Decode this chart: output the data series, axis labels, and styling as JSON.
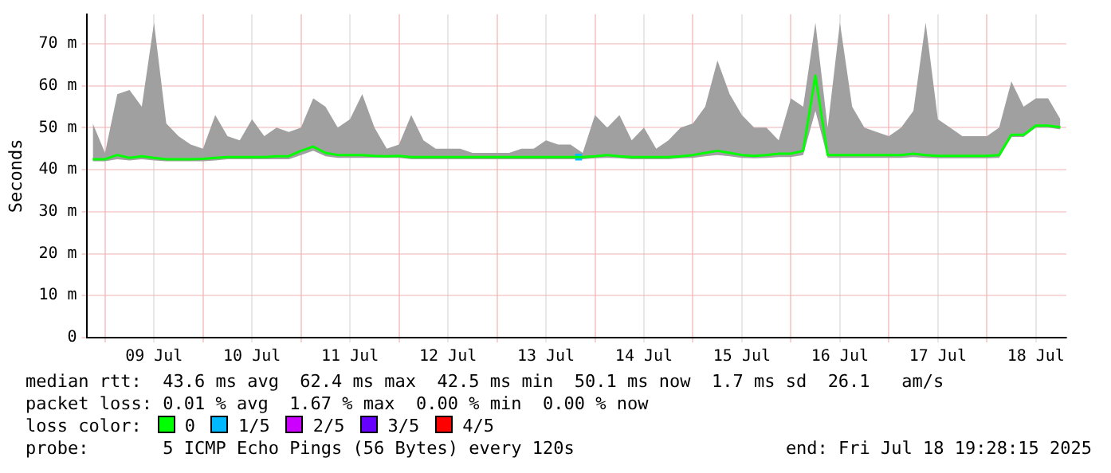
{
  "chart_data": {
    "type": "line",
    "ylabel": "Seconds",
    "legend_title": "loss color:",
    "legend": "bottom",
    "grid": true,
    "xlim": [
      "2025-07-08T19:28",
      "2025-07-18T19:28"
    ],
    "xticks": [
      {
        "value": "2025-07-09T00:00",
        "label": null
      },
      {
        "value": "2025-07-09T12:00",
        "label": "09 Jul"
      },
      {
        "value": "2025-07-10T00:00",
        "label": null
      },
      {
        "value": "2025-07-10T12:00",
        "label": "10 Jul"
      },
      {
        "value": "2025-07-11T00:00",
        "label": null
      },
      {
        "value": "2025-07-11T12:00",
        "label": "11 Jul"
      },
      {
        "value": "2025-07-12T00:00",
        "label": null
      },
      {
        "value": "2025-07-12T12:00",
        "label": "12 Jul"
      },
      {
        "value": "2025-07-13T00:00",
        "label": null
      },
      {
        "value": "2025-07-13T12:00",
        "label": "13 Jul"
      },
      {
        "value": "2025-07-14T00:00",
        "label": null
      },
      {
        "value": "2025-07-14T12:00",
        "label": "14 Jul"
      },
      {
        "value": "2025-07-15T00:00",
        "label": null
      },
      {
        "value": "2025-07-15T12:00",
        "label": "15 Jul"
      },
      {
        "value": "2025-07-16T00:00",
        "label": null
      },
      {
        "value": "2025-07-16T12:00",
        "label": "16 Jul"
      },
      {
        "value": "2025-07-17T00:00",
        "label": null
      },
      {
        "value": "2025-07-17T12:00",
        "label": "17 Jul"
      },
      {
        "value": "2025-07-18T00:00",
        "label": null
      },
      {
        "value": "2025-07-18T12:00",
        "label": "18 Jul"
      }
    ],
    "ylim": [
      0,
      77
    ],
    "yticks": [
      0,
      {
        "value": 10,
        "label": "10 m"
      },
      {
        "value": 20,
        "label": "20 m"
      },
      {
        "value": 30,
        "label": "30 m"
      },
      {
        "value": 40,
        "label": "40 m"
      },
      {
        "value": 50,
        "label": "50 m"
      },
      {
        "value": 60,
        "label": "60 m"
      },
      {
        "value": 70,
        "label": "70 m"
      }
    ],
    "x": [
      "2025-07-08T21:00",
      "2025-07-09T00:00",
      "2025-07-09T03:00",
      "2025-07-09T06:00",
      "2025-07-09T09:00",
      "2025-07-09T12:00",
      "2025-07-09T15:00",
      "2025-07-09T18:00",
      "2025-07-09T21:00",
      "2025-07-10T00:00",
      "2025-07-10T03:00",
      "2025-07-10T06:00",
      "2025-07-10T09:00",
      "2025-07-10T12:00",
      "2025-07-10T15:00",
      "2025-07-10T18:00",
      "2025-07-10T21:00",
      "2025-07-11T00:00",
      "2025-07-11T03:00",
      "2025-07-11T06:00",
      "2025-07-11T09:00",
      "2025-07-11T12:00",
      "2025-07-11T15:00",
      "2025-07-11T18:00",
      "2025-07-11T21:00",
      "2025-07-12T00:00",
      "2025-07-12T03:00",
      "2025-07-12T06:00",
      "2025-07-12T09:00",
      "2025-07-12T12:00",
      "2025-07-12T15:00",
      "2025-07-12T18:00",
      "2025-07-12T21:00",
      "2025-07-13T00:00",
      "2025-07-13T03:00",
      "2025-07-13T06:00",
      "2025-07-13T09:00",
      "2025-07-13T12:00",
      "2025-07-13T15:00",
      "2025-07-13T18:00",
      "2025-07-13T21:00",
      "2025-07-14T00:00",
      "2025-07-14T03:00",
      "2025-07-14T06:00",
      "2025-07-14T09:00",
      "2025-07-14T12:00",
      "2025-07-14T15:00",
      "2025-07-14T18:00",
      "2025-07-14T21:00",
      "2025-07-15T00:00",
      "2025-07-15T03:00",
      "2025-07-15T06:00",
      "2025-07-15T09:00",
      "2025-07-15T12:00",
      "2025-07-15T15:00",
      "2025-07-15T18:00",
      "2025-07-15T21:00",
      "2025-07-16T00:00",
      "2025-07-16T03:00",
      "2025-07-16T06:00",
      "2025-07-16T09:00",
      "2025-07-16T12:00",
      "2025-07-16T15:00",
      "2025-07-16T18:00",
      "2025-07-16T21:00",
      "2025-07-17T00:00",
      "2025-07-17T03:00",
      "2025-07-17T06:00",
      "2025-07-17T09:00",
      "2025-07-17T12:00",
      "2025-07-17T15:00",
      "2025-07-17T18:00",
      "2025-07-17T21:00",
      "2025-07-18T00:00",
      "2025-07-18T03:00",
      "2025-07-18T06:00",
      "2025-07-18T09:00",
      "2025-07-18T12:00",
      "2025-07-18T15:00",
      "2025-07-18T18:00"
    ],
    "series": [
      {
        "name": "0",
        "color": "#00ff00",
        "values": [
          42.5,
          42.5,
          43.5,
          42.8,
          43.2,
          42.8,
          42.5,
          42.5,
          42.5,
          42.6,
          42.8,
          43,
          43,
          43,
          43,
          43.2,
          43.2,
          44.5,
          45.5,
          44,
          43.5,
          43.5,
          43.5,
          43.3,
          43.2,
          43.3,
          43,
          43,
          43,
          43,
          43,
          43,
          43,
          43,
          43,
          43,
          43,
          43,
          43,
          43,
          43,
          43.2,
          43.5,
          43.2,
          43,
          43,
          43,
          43,
          43.2,
          43.5,
          44,
          44.5,
          44,
          43.5,
          43.3,
          43.5,
          43.8,
          43.8,
          44.5,
          62.4,
          43.5,
          43.5,
          43.5,
          43.5,
          43.5,
          43.5,
          43.5,
          43.8,
          43.5,
          43.3,
          43.3,
          43.3,
          43.3,
          43.3,
          43.5,
          48.3,
          48.3,
          50.5,
          50.5,
          50.1
        ],
        "lower": [
          42,
          42,
          42.5,
          42.2,
          42.5,
          42.2,
          42,
          42,
          42,
          42,
          42.2,
          42.5,
          42.5,
          42.5,
          42.5,
          42.5,
          42.5,
          43.5,
          44.5,
          43.2,
          42.8,
          42.8,
          42.8,
          42.8,
          42.8,
          42.8,
          42.5,
          42.5,
          42.5,
          42.5,
          42.5,
          42.5,
          42.5,
          42.5,
          42.5,
          42.5,
          42.5,
          42.5,
          42.5,
          42.5,
          42.5,
          42.7,
          42.8,
          42.7,
          42.5,
          42.5,
          42.5,
          42.5,
          42.7,
          42.8,
          43.2,
          43.5,
          43.2,
          42.8,
          42.7,
          42.8,
          43,
          43,
          43.5,
          54,
          42.8,
          42.8,
          42.8,
          42.8,
          42.8,
          42.8,
          42.8,
          43,
          42.8,
          42.7,
          42.7,
          42.7,
          42.7,
          42.7,
          42.8,
          47.8,
          47.8,
          50,
          50,
          49.6
        ],
        "upper": [
          51,
          44,
          58,
          59,
          55,
          75,
          51,
          48,
          46,
          45,
          53,
          48,
          47,
          52,
          48,
          50,
          49,
          50,
          57,
          55,
          50,
          52,
          58,
          50,
          45,
          46,
          53,
          47,
          45,
          45,
          45,
          44,
          44,
          44,
          44,
          45,
          45,
          47,
          46,
          46,
          44,
          53,
          50,
          53,
          47,
          50,
          45,
          47,
          50,
          51,
          55,
          66,
          58,
          53,
          50,
          50,
          47,
          57,
          55,
          75,
          50,
          75,
          55,
          50,
          49,
          48,
          50,
          54,
          75,
          52,
          50,
          48,
          48,
          48,
          50,
          61,
          55,
          57,
          57,
          52
        ]
      },
      {
        "name": "1/5",
        "color": "#00b8ff",
        "marker": "square",
        "x": [
          "2025-07-13T20:00"
        ],
        "values": [
          43
        ]
      },
      {
        "name": "2/5",
        "color": "#cc00ff",
        "values": [
          null,
          null,
          null,
          null,
          null,
          null,
          null,
          null,
          null,
          null,
          null,
          null,
          null,
          null,
          null,
          null,
          null,
          null,
          null,
          null,
          null,
          null,
          null,
          null,
          null,
          null,
          null,
          null,
          null,
          null,
          null,
          null,
          null,
          null,
          null,
          null,
          null,
          null,
          null,
          null,
          null,
          null,
          null,
          null,
          null,
          null,
          null,
          null,
          null,
          null,
          null,
          null,
          null,
          null,
          null,
          null,
          null,
          null,
          null,
          null,
          null,
          null,
          null,
          null,
          null,
          null,
          null,
          null,
          null,
          null,
          null,
          null,
          null,
          null,
          null,
          null,
          null,
          null,
          null,
          null
        ]
      },
      {
        "name": "3/5",
        "color": "#6600ff",
        "values": [
          null,
          null,
          null,
          null,
          null,
          null,
          null,
          null,
          null,
          null,
          null,
          null,
          null,
          null,
          null,
          null,
          null,
          null,
          null,
          null,
          null,
          null,
          null,
          null,
          null,
          null,
          null,
          null,
          null,
          null,
          null,
          null,
          null,
          null,
          null,
          null,
          null,
          null,
          null,
          null,
          null,
          null,
          null,
          null,
          null,
          null,
          null,
          null,
          null,
          null,
          null,
          null,
          null,
          null,
          null,
          null,
          null,
          null,
          null,
          null,
          null,
          null,
          null,
          null,
          null,
          null,
          null,
          null,
          null,
          null,
          null,
          null,
          null,
          null,
          null,
          null,
          null,
          null,
          null,
          null
        ]
      },
      {
        "name": "4/5",
        "color": "#ff0000",
        "values": [
          null,
          null,
          null,
          null,
          null,
          null,
          null,
          null,
          null,
          null,
          null,
          null,
          null,
          null,
          null,
          null,
          null,
          null,
          null,
          null,
          null,
          null,
          null,
          null,
          null,
          null,
          null,
          null,
          null,
          null,
          null,
          null,
          null,
          null,
          null,
          null,
          null,
          null,
          null,
          null,
          null,
          null,
          null,
          null,
          null,
          null,
          null,
          null,
          null,
          null,
          null,
          null,
          null,
          null,
          null,
          null,
          null,
          null,
          null,
          null,
          null,
          null,
          null,
          null,
          null,
          null,
          null,
          null,
          null,
          null,
          null,
          null,
          null,
          null,
          null,
          null,
          null,
          null,
          null,
          null
        ]
      }
    ],
    "annotations": [
      "median rtt:  43.6 ms avg  62.4 ms max  42.5 ms min  50.1 ms now  1.7 ms sd  26.1   am/s",
      "packet loss: 0.01 % avg  1.67 % max  0.00 % min  0.00 % now",
      "probe:       5 ICMP Echo Pings (56 Bytes) every 120s",
      "end: Fri Jul 18 19:28:15 2025"
    ]
  }
}
